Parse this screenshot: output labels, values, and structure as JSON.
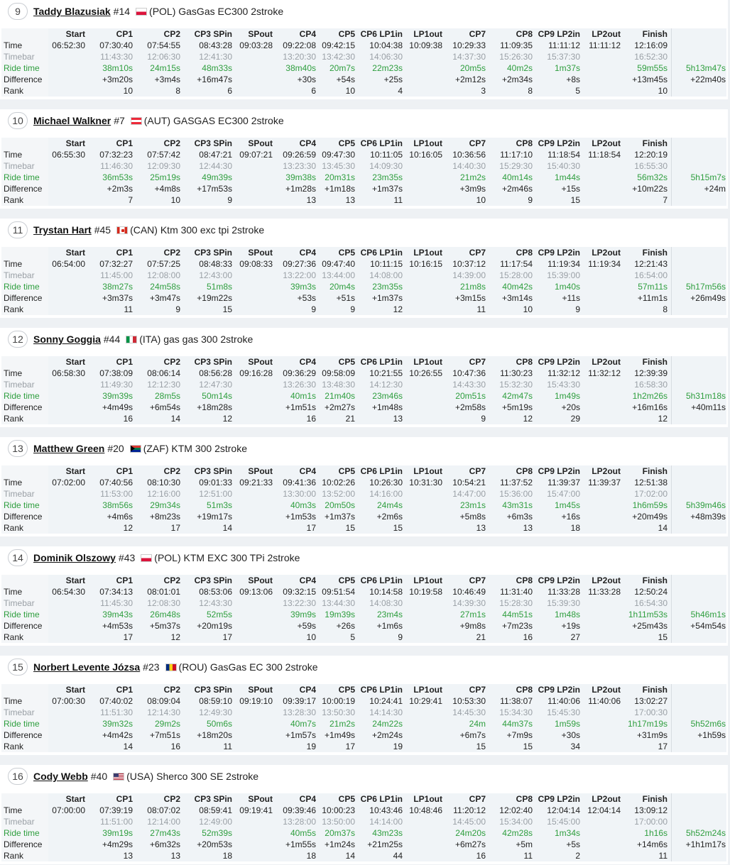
{
  "columns": [
    "Start",
    "CP1",
    "CP2",
    "CP3 SPin",
    "SPout",
    "CP4",
    "CP5",
    "CP6 LP1in",
    "LP1out",
    "CP7",
    "CP8",
    "CP9 LP2in",
    "LP2out",
    "Finish",
    ""
  ],
  "row_labels": {
    "time": "Time",
    "timebar": "Timebar",
    "ride": "Ride time",
    "diff": "Difference",
    "rank": "Rank"
  },
  "riders": [
    {
      "pos": "9",
      "name": "Taddy Blazusiak",
      "number": "#14",
      "flag": "pol",
      "info": "(POL) GasGas EC300 2stroke",
      "time": [
        "06:52:30",
        "07:30:40",
        "07:54:55",
        "08:43:28",
        "09:03:28",
        "09:22:08",
        "09:42:15",
        "10:04:38",
        "10:09:38",
        "10:29:33",
        "11:09:35",
        "11:11:12",
        "11:11:12",
        "12:16:09",
        ""
      ],
      "timebar": [
        "",
        "11:43:30",
        "12:06:30",
        "12:41:30",
        "",
        "13:20:30",
        "13:42:30",
        "14:06:30",
        "",
        "14:37:30",
        "15:26:30",
        "15:37:30",
        "",
        "16:52:30",
        ""
      ],
      "ride": [
        "",
        "38m10s",
        "24m15s",
        "48m33s",
        "",
        "38m40s",
        "20m7s",
        "22m23s",
        "",
        "20m5s",
        "40m2s",
        "1m37s",
        "",
        "59m55s",
        "5h13m47s"
      ],
      "diff": [
        "",
        "+3m20s",
        "+3m4s",
        "+16m47s",
        "",
        "+30s",
        "+54s",
        "+25s",
        "",
        "+2m12s",
        "+2m34s",
        "+8s",
        "",
        "+13m45s",
        "+22m40s"
      ],
      "rank": [
        "",
        "10",
        "8",
        "6",
        "",
        "6",
        "10",
        "4",
        "",
        "3",
        "8",
        "5",
        "",
        "10",
        ""
      ]
    },
    {
      "pos": "10",
      "name": "Michael Walkner",
      "number": "#7",
      "flag": "aut",
      "info": "(AUT) GASGAS EC300 2stroke",
      "time": [
        "06:55:30",
        "07:32:23",
        "07:57:42",
        "08:47:21",
        "09:07:21",
        "09:26:59",
        "09:47:30",
        "10:11:05",
        "10:16:05",
        "10:36:56",
        "11:17:10",
        "11:18:54",
        "11:18:54",
        "12:20:19",
        ""
      ],
      "timebar": [
        "",
        "11:46:30",
        "12:09:30",
        "12:44:30",
        "",
        "13:23:30",
        "13:45:30",
        "14:09:30",
        "",
        "14:40:30",
        "15:29:30",
        "15:40:30",
        "",
        "16:55:30",
        ""
      ],
      "ride": [
        "",
        "36m53s",
        "25m19s",
        "49m39s",
        "",
        "39m38s",
        "20m31s",
        "23m35s",
        "",
        "21m2s",
        "40m14s",
        "1m44s",
        "",
        "56m32s",
        "5h15m7s"
      ],
      "diff": [
        "",
        "+2m3s",
        "+4m8s",
        "+17m53s",
        "",
        "+1m28s",
        "+1m18s",
        "+1m37s",
        "",
        "+3m9s",
        "+2m46s",
        "+15s",
        "",
        "+10m22s",
        "+24m"
      ],
      "rank": [
        "",
        "7",
        "10",
        "9",
        "",
        "13",
        "13",
        "11",
        "",
        "10",
        "9",
        "15",
        "",
        "7",
        ""
      ]
    },
    {
      "pos": "11",
      "name": "Trystan Hart",
      "number": "#45",
      "flag": "can",
      "info": "(CAN) Ktm 300 exc tpi 2stroke",
      "time": [
        "06:54:00",
        "07:32:27",
        "07:57:25",
        "08:48:33",
        "09:08:33",
        "09:27:36",
        "09:47:40",
        "10:11:15",
        "10:16:15",
        "10:37:12",
        "11:17:54",
        "11:19:34",
        "11:19:34",
        "12:21:43",
        ""
      ],
      "timebar": [
        "",
        "11:45:00",
        "12:08:00",
        "12:43:00",
        "",
        "13:22:00",
        "13:44:00",
        "14:08:00",
        "",
        "14:39:00",
        "15:28:00",
        "15:39:00",
        "",
        "16:54:00",
        ""
      ],
      "ride": [
        "",
        "38m27s",
        "24m58s",
        "51m8s",
        "",
        "39m3s",
        "20m4s",
        "23m35s",
        "",
        "21m8s",
        "40m42s",
        "1m40s",
        "",
        "57m11s",
        "5h17m56s"
      ],
      "diff": [
        "",
        "+3m37s",
        "+3m47s",
        "+19m22s",
        "",
        "+53s",
        "+51s",
        "+1m37s",
        "",
        "+3m15s",
        "+3m14s",
        "+11s",
        "",
        "+11m1s",
        "+26m49s"
      ],
      "rank": [
        "",
        "11",
        "9",
        "15",
        "",
        "9",
        "9",
        "12",
        "",
        "11",
        "10",
        "9",
        "",
        "8",
        ""
      ]
    },
    {
      "pos": "12",
      "name": "Sonny Goggia",
      "number": "#44",
      "flag": "ita",
      "info": "(ITA) gas gas 300 2stroke",
      "time": [
        "06:58:30",
        "07:38:09",
        "08:06:14",
        "08:56:28",
        "09:16:28",
        "09:36:29",
        "09:58:09",
        "10:21:55",
        "10:26:55",
        "10:47:36",
        "11:30:23",
        "11:32:12",
        "11:32:12",
        "12:39:39",
        ""
      ],
      "timebar": [
        "",
        "11:49:30",
        "12:12:30",
        "12:47:30",
        "",
        "13:26:30",
        "13:48:30",
        "14:12:30",
        "",
        "14:43:30",
        "15:32:30",
        "15:43:30",
        "",
        "16:58:30",
        ""
      ],
      "ride": [
        "",
        "39m39s",
        "28m5s",
        "50m14s",
        "",
        "40m1s",
        "21m40s",
        "23m46s",
        "",
        "20m51s",
        "42m47s",
        "1m49s",
        "",
        "1h2m26s",
        "5h31m18s"
      ],
      "diff": [
        "",
        "+4m49s",
        "+6m54s",
        "+18m28s",
        "",
        "+1m51s",
        "+2m27s",
        "+1m48s",
        "",
        "+2m58s",
        "+5m19s",
        "+20s",
        "",
        "+16m16s",
        "+40m11s"
      ],
      "rank": [
        "",
        "16",
        "14",
        "12",
        "",
        "16",
        "21",
        "13",
        "",
        "9",
        "12",
        "29",
        "",
        "12",
        ""
      ]
    },
    {
      "pos": "13",
      "name": "Matthew Green",
      "number": "#20",
      "flag": "zaf",
      "info": "(ZAF) KTM 300 2stroke",
      "time": [
        "07:02:00",
        "07:40:56",
        "08:10:30",
        "09:01:33",
        "09:21:33",
        "09:41:36",
        "10:02:26",
        "10:26:30",
        "10:31:30",
        "10:54:21",
        "11:37:52",
        "11:39:37",
        "11:39:37",
        "12:51:38",
        ""
      ],
      "timebar": [
        "",
        "11:53:00",
        "12:16:00",
        "12:51:00",
        "",
        "13:30:00",
        "13:52:00",
        "14:16:00",
        "",
        "14:47:00",
        "15:36:00",
        "15:47:00",
        "",
        "17:02:00",
        ""
      ],
      "ride": [
        "",
        "38m56s",
        "29m34s",
        "51m3s",
        "",
        "40m3s",
        "20m50s",
        "24m4s",
        "",
        "23m1s",
        "43m31s",
        "1m45s",
        "",
        "1h6m59s",
        "5h39m46s"
      ],
      "diff": [
        "",
        "+4m6s",
        "+8m23s",
        "+19m17s",
        "",
        "+1m53s",
        "+1m37s",
        "+2m6s",
        "",
        "+5m8s",
        "+6m3s",
        "+16s",
        "",
        "+20m49s",
        "+48m39s"
      ],
      "rank": [
        "",
        "12",
        "17",
        "14",
        "",
        "17",
        "15",
        "15",
        "",
        "13",
        "13",
        "18",
        "",
        "14",
        ""
      ]
    },
    {
      "pos": "14",
      "name": "Dominik Olszowy",
      "number": "#43",
      "flag": "pol",
      "info": "(POL) KTM EXC 300 TPi 2stroke",
      "time": [
        "06:54:30",
        "07:34:13",
        "08:01:01",
        "08:53:06",
        "09:13:06",
        "09:32:15",
        "09:51:54",
        "10:14:58",
        "10:19:58",
        "10:46:49",
        "11:31:40",
        "11:33:28",
        "11:33:28",
        "12:50:24",
        ""
      ],
      "timebar": [
        "",
        "11:45:30",
        "12:08:30",
        "12:43:30",
        "",
        "13:22:30",
        "13:44:30",
        "14:08:30",
        "",
        "14:39:30",
        "15:28:30",
        "15:39:30",
        "",
        "16:54:30",
        ""
      ],
      "ride": [
        "",
        "39m43s",
        "26m48s",
        "52m5s",
        "",
        "39m9s",
        "19m39s",
        "23m4s",
        "",
        "27m1s",
        "44m51s",
        "1m48s",
        "",
        "1h11m53s",
        "5h46m1s"
      ],
      "diff": [
        "",
        "+4m53s",
        "+5m37s",
        "+20m19s",
        "",
        "+59s",
        "+26s",
        "+1m6s",
        "",
        "+9m8s",
        "+7m23s",
        "+19s",
        "",
        "+25m43s",
        "+54m54s"
      ],
      "rank": [
        "",
        "17",
        "12",
        "17",
        "",
        "10",
        "5",
        "9",
        "",
        "21",
        "16",
        "27",
        "",
        "15",
        ""
      ]
    },
    {
      "pos": "15",
      "name": "Norbert Levente Józsa",
      "number": "#23",
      "flag": "rou",
      "info": "(ROU) GasGas EC 300 2stroke",
      "time": [
        "07:00:30",
        "07:40:02",
        "08:09:04",
        "08:59:10",
        "09:19:10",
        "09:39:17",
        "10:00:19",
        "10:24:41",
        "10:29:41",
        "10:53:30",
        "11:38:07",
        "11:40:06",
        "11:40:06",
        "13:02:27",
        ""
      ],
      "timebar": [
        "",
        "11:51:30",
        "12:14:30",
        "12:49:30",
        "",
        "13:28:30",
        "13:50:30",
        "14:14:30",
        "",
        "14:45:30",
        "15:34:30",
        "15:45:30",
        "",
        "17:00:30",
        ""
      ],
      "ride": [
        "",
        "39m32s",
        "29m2s",
        "50m6s",
        "",
        "40m7s",
        "21m2s",
        "24m22s",
        "",
        "24m",
        "44m37s",
        "1m59s",
        "",
        "1h17m19s",
        "5h52m6s"
      ],
      "diff": [
        "",
        "+4m42s",
        "+7m51s",
        "+18m20s",
        "",
        "+1m57s",
        "+1m49s",
        "+2m24s",
        "",
        "+6m7s",
        "+7m9s",
        "+30s",
        "",
        "+31m9s",
        "+1h59s"
      ],
      "rank": [
        "",
        "14",
        "16",
        "11",
        "",
        "19",
        "17",
        "19",
        "",
        "15",
        "15",
        "34",
        "",
        "17",
        ""
      ]
    },
    {
      "pos": "16",
      "name": "Cody Webb",
      "number": "#40",
      "flag": "usa",
      "info": "(USA) Sherco 300 SE 2stroke",
      "time": [
        "07:00:00",
        "07:39:19",
        "08:07:02",
        "08:59:41",
        "09:19:41",
        "09:39:46",
        "10:00:23",
        "10:43:46",
        "10:48:46",
        "11:20:12",
        "12:02:40",
        "12:04:14",
        "12:04:14",
        "13:09:12",
        ""
      ],
      "timebar": [
        "",
        "11:51:00",
        "12:14:00",
        "12:49:00",
        "",
        "13:28:00",
        "13:50:00",
        "14:14:00",
        "",
        "14:45:00",
        "15:34:00",
        "15:45:00",
        "",
        "17:00:00",
        ""
      ],
      "ride": [
        "",
        "39m19s",
        "27m43s",
        "52m39s",
        "",
        "40m5s",
        "20m37s",
        "43m23s",
        "",
        "24m20s",
        "42m28s",
        "1m34s",
        "",
        "1h16s",
        "5h52m24s"
      ],
      "diff": [
        "",
        "+4m29s",
        "+6m32s",
        "+20m53s",
        "",
        "+1m55s",
        "+1m24s",
        "+21m25s",
        "",
        "+6m27s",
        "+5m",
        "+5s",
        "",
        "+14m6s",
        "+1h1m17s"
      ],
      "rank": [
        "",
        "13",
        "13",
        "18",
        "",
        "18",
        "14",
        "44",
        "",
        "16",
        "11",
        "2",
        "",
        "11",
        ""
      ]
    }
  ]
}
